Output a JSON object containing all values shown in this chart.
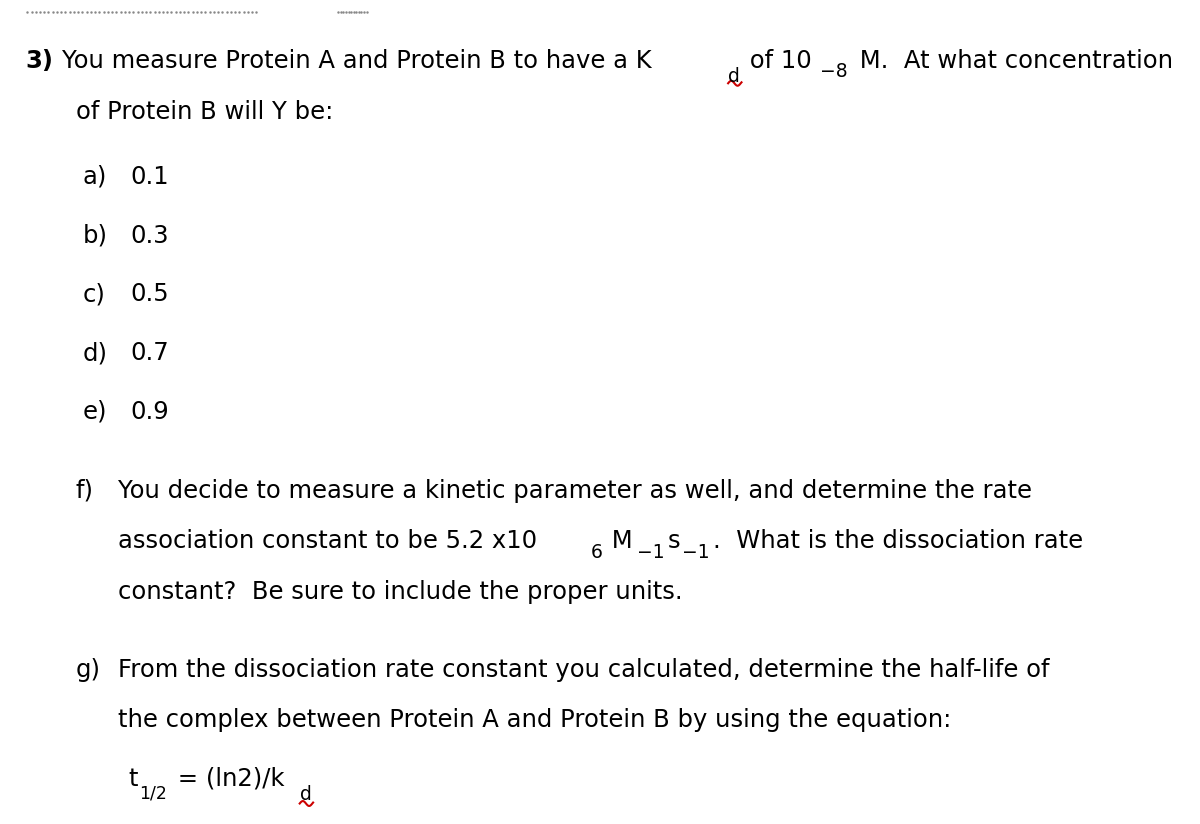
{
  "background_color": "#ffffff",
  "figsize": [
    12.0,
    8.24
  ],
  "dpi": 100,
  "text_color": "#000000",
  "underline_color": "#cc0000",
  "font_size": 17.5,
  "font_family": "DejaVu Sans",
  "bold_number": "3)",
  "line1a": "You measure Protein A and Protein B to have a K",
  "line1b_sub": "d",
  "line1c": " of 10",
  "line1d_sup": "−8",
  "line1e": " M.  At what concentration",
  "line2": "of Protein B will Y be:",
  "items_a_e": [
    [
      "a)",
      "0.1"
    ],
    [
      "b)",
      "0.3"
    ],
    [
      "c)",
      "0.5"
    ],
    [
      "d)",
      "0.7"
    ],
    [
      "e)",
      "0.9"
    ]
  ],
  "f_label": "f)",
  "f_line1": "You decide to measure a kinetic parameter as well, and determine the rate",
  "f_line2a": "association constant to be 5.2 x10",
  "f_line2b_sup": "6",
  "f_line2c": " M",
  "f_line2d_sup": "−1",
  "f_line2e": "s",
  "f_line2f_sup": "−1",
  "f_line2g": ".  What is the dissociation rate",
  "f_line3": "constant?  Be sure to include the proper units.",
  "g_label": "g)",
  "g_line1": "From the dissociation rate constant you calculated, determine the half-life of",
  "g_line2": "the complex between Protein A and Protein B by using the equation:",
  "g_eq_t": "t",
  "g_eq_sub": "1/2",
  "g_eq_mid": " = (ln2)/k",
  "g_eq_kd": "d"
}
